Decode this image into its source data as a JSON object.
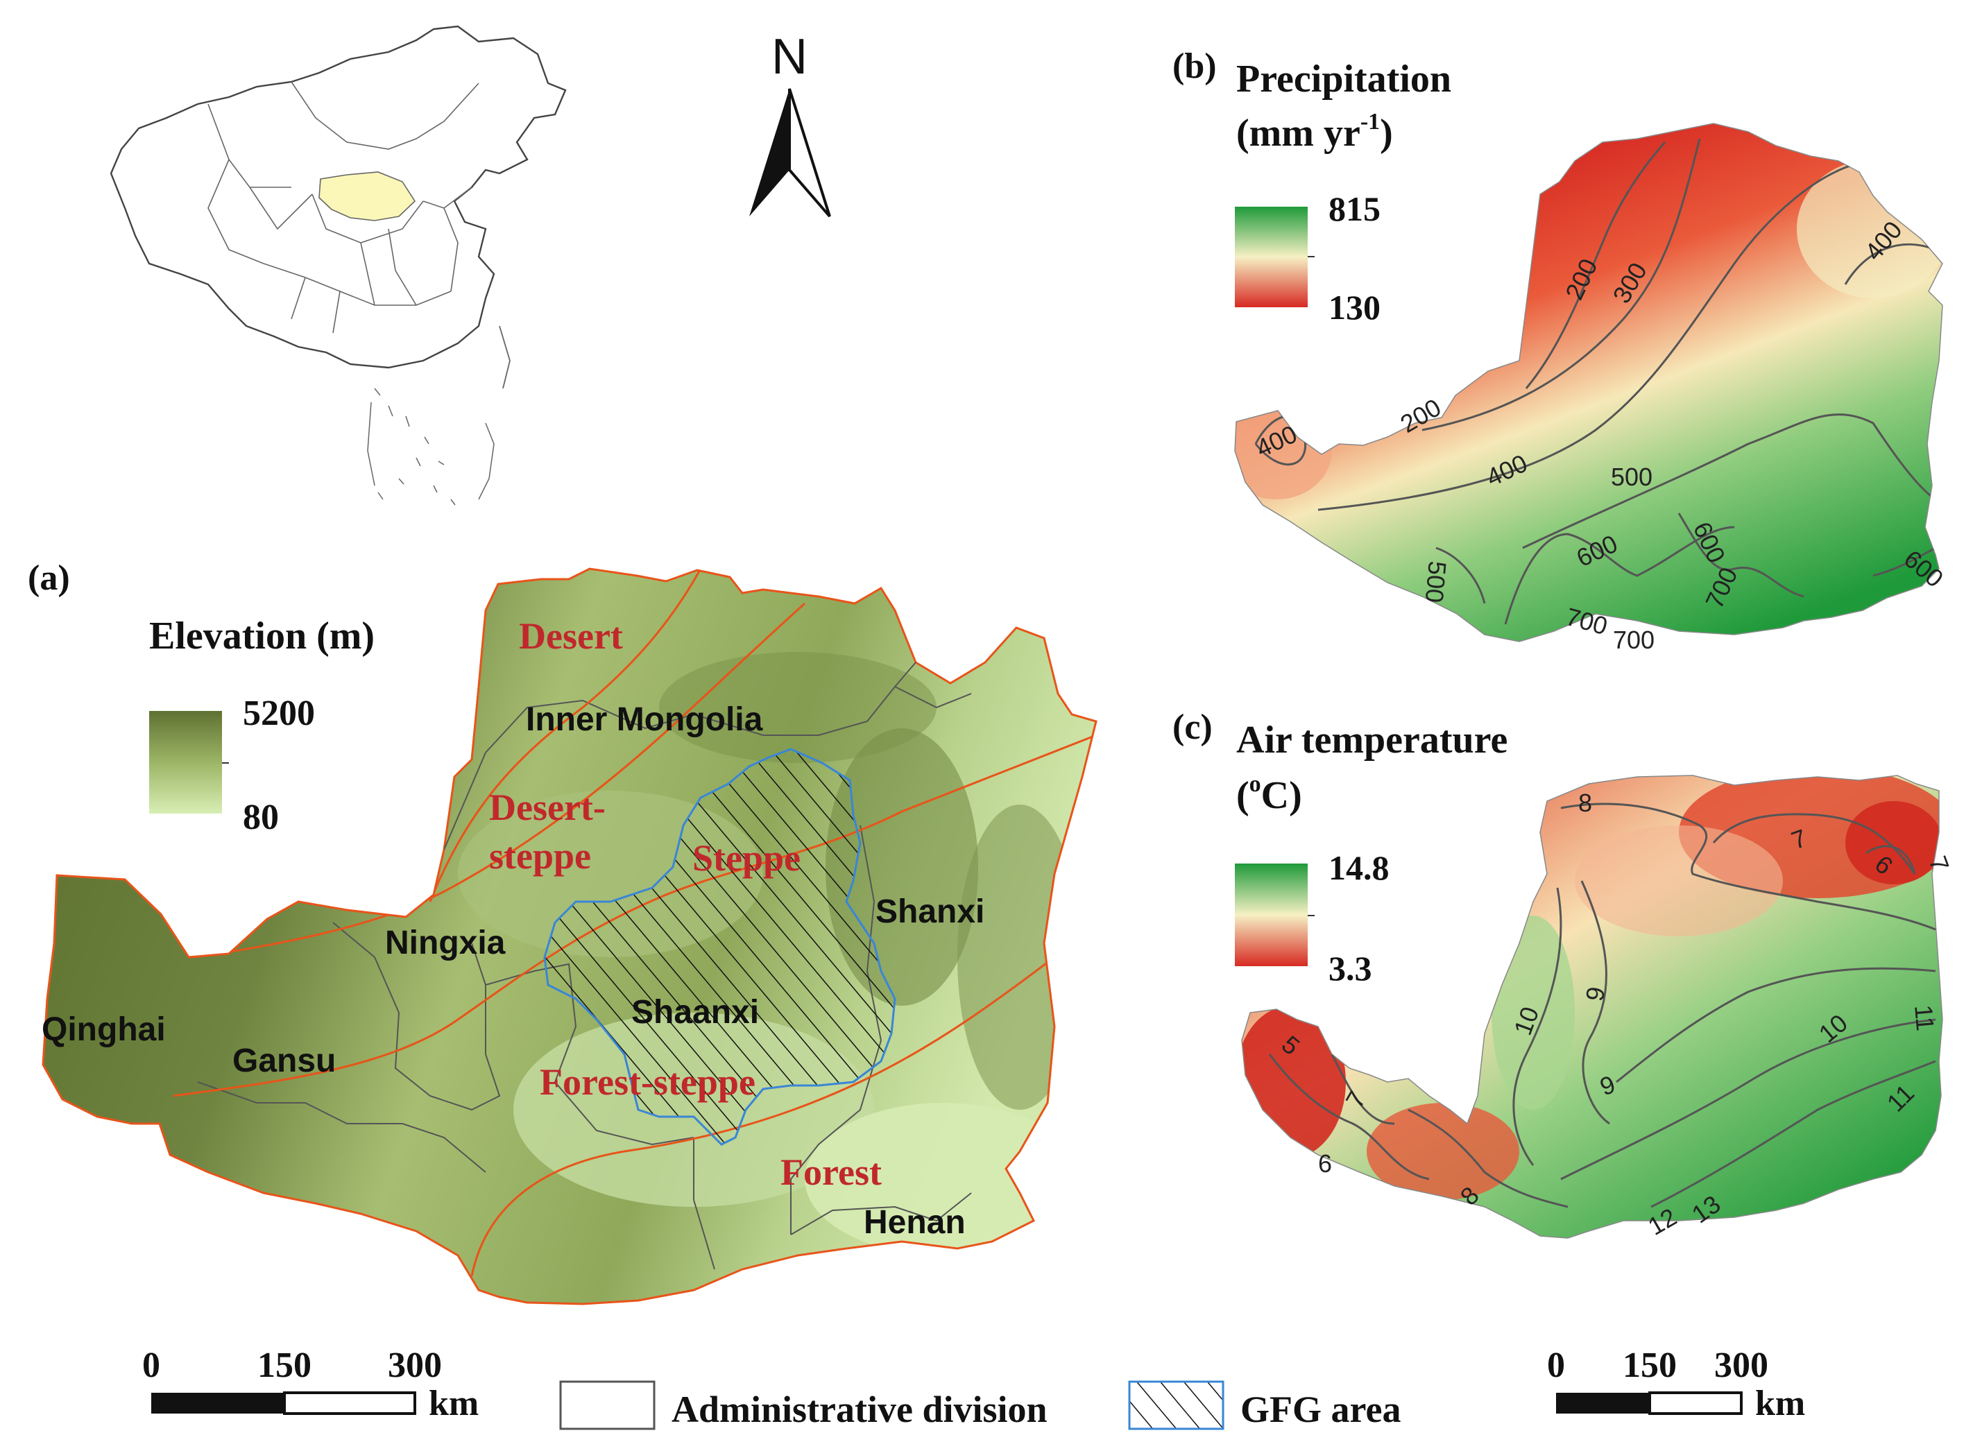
{
  "colors": {
    "elev_high": "#5f7132",
    "elev_mid": "#96ad5e",
    "elev_low": "#d8eeb4",
    "precip_high": "#1f9a3a",
    "precip_mid": "#f6f0c4",
    "precip_low": "#d62a22",
    "temp_high": "#1f9a3a",
    "temp_mid": "#f6f0c4",
    "temp_low": "#d62a22",
    "zone_line": "#e8541a",
    "zone_text": "#c0282c",
    "gfg_border": "#3a86d6",
    "loess_china": "#fbf7b8"
  },
  "north": {
    "label": "N"
  },
  "panel_a": {
    "tag": "(a)",
    "legend_title": "Elevation (m)",
    "legend_max": "5200",
    "legend_min": "80",
    "zones": [
      "Desert",
      "Desert-",
      "steppe",
      "Steppe",
      "Forest-steppe",
      "Forest"
    ],
    "provinces": [
      "Inner Mongolia",
      "Ningxia",
      "Shanxi",
      "Qinghai",
      "Gansu",
      "Shaanxi",
      "Henan"
    ]
  },
  "panel_b": {
    "tag": "(b)",
    "title_line1": "Precipitation",
    "title_line2_base": "(mm yr",
    "title_line2_sup": "-1",
    "title_line2_end": ")",
    "legend_max": "815",
    "legend_min": "130",
    "contours": [
      "200",
      "300",
      "200",
      "400",
      "400",
      "400",
      "500",
      "500",
      "600",
      "600",
      "600",
      "700",
      "700",
      "700"
    ]
  },
  "panel_c": {
    "tag": "(c)",
    "title_line1": "Air temperature",
    "title_line2_base": "(",
    "title_line2_sup": "o",
    "title_line2_end": "C)",
    "legend_max": "14.8",
    "legend_min": "3.3",
    "contours": [
      "8",
      "7",
      "6",
      "7",
      "10",
      "9",
      "9",
      "10",
      "11",
      "11",
      "5",
      "7",
      "6",
      "8",
      "12",
      "13"
    ]
  },
  "scale_a": {
    "t0": "0",
    "t1": "150",
    "t2": "300",
    "unit": "km"
  },
  "scale_b": {
    "t0": "0",
    "t1": "150",
    "t2": "300",
    "unit": "km"
  },
  "legend_bottom": {
    "admin": "Administrative division",
    "gfg": "GFG area"
  }
}
